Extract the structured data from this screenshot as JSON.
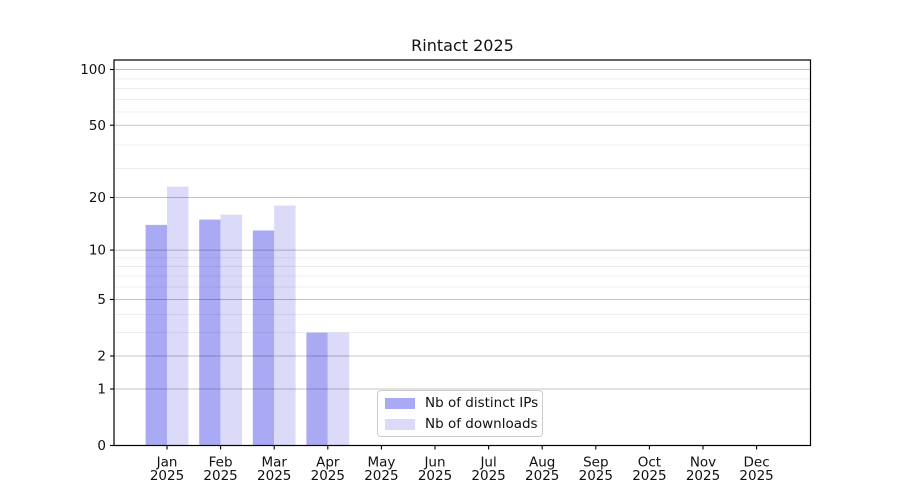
{
  "chart_data": {
    "type": "bar",
    "title": "Rintact 2025",
    "categories": [
      {
        "month": "Jan",
        "year": "2025"
      },
      {
        "month": "Feb",
        "year": "2025"
      },
      {
        "month": "Mar",
        "year": "2025"
      },
      {
        "month": "Apr",
        "year": "2025"
      },
      {
        "month": "May",
        "year": "2025"
      },
      {
        "month": "Jun",
        "year": "2025"
      },
      {
        "month": "Jul",
        "year": "2025"
      },
      {
        "month": "Aug",
        "year": "2025"
      },
      {
        "month": "Sep",
        "year": "2025"
      },
      {
        "month": "Oct",
        "year": "2025"
      },
      {
        "month": "Nov",
        "year": "2025"
      },
      {
        "month": "Dec",
        "year": "2025"
      }
    ],
    "series": [
      {
        "name": "Nb of distinct IPs",
        "color": "#aaaaf4",
        "values": [
          14,
          15,
          13,
          3,
          0,
          0,
          0,
          0,
          0,
          0,
          0,
          0
        ]
      },
      {
        "name": "Nb of downloads",
        "color": "#dbdaf8",
        "values": [
          23,
          16,
          18,
          3,
          0,
          0,
          0,
          0,
          0,
          0,
          0,
          0
        ]
      }
    ],
    "yscale": "log10(1+value)",
    "y_tick_values": [
      0,
      1,
      2,
      5,
      10,
      20,
      50,
      100
    ],
    "y_tick_labels": [
      "0",
      "1",
      "2",
      "5",
      "10",
      "20",
      "50",
      "100"
    ],
    "minor_gridline_values": [
      3,
      4,
      6,
      7,
      8,
      9,
      29,
      39,
      59,
      69,
      79,
      89
    ],
    "ylim_top": 112,
    "grid": true,
    "legend_position": "bottom-center",
    "colors": {
      "axis": "#000000",
      "text": "#111111",
      "grid_major": "rgba(0,0,0,0.23)",
      "grid_minor": "rgba(0,0,0,0.075)",
      "legend_border": "#cccccc"
    }
  }
}
